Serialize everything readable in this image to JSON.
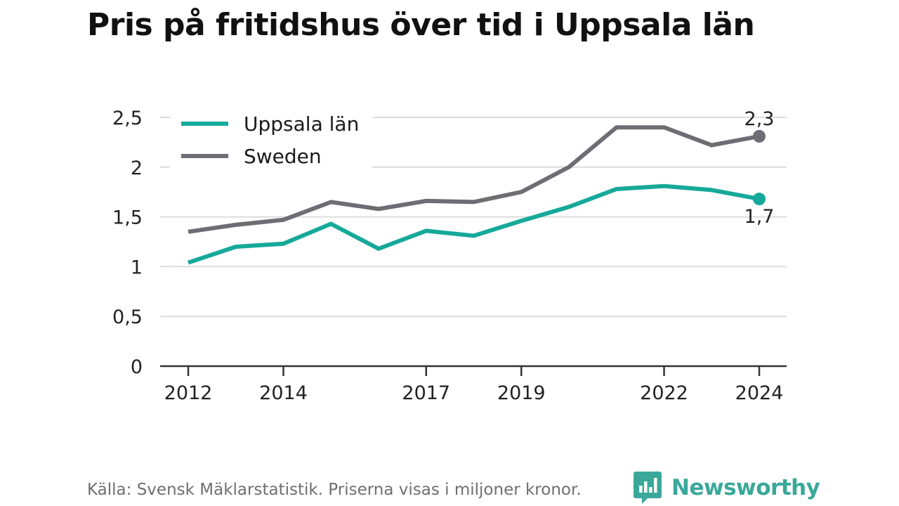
{
  "title": "Pris på fritidshus över tid i Uppsala län",
  "footer": {
    "source": "Källa: Svensk Mäklarstatistik. Priserna visas i miljoner kronor.",
    "brand": "Newsworthy",
    "brand_color": "#3aa89a",
    "brand_icon": "bar-chart-speech-bubble-icon"
  },
  "chart_data": {
    "type": "line",
    "title": "Pris på fritidshus över tid i Uppsala län",
    "xlabel": "",
    "ylabel": "",
    "x": [
      2012,
      2013,
      2014,
      2015,
      2016,
      2017,
      2018,
      2019,
      2020,
      2021,
      2022,
      2023,
      2024
    ],
    "x_ticks": [
      2012,
      2014,
      2017,
      2019,
      2022,
      2024
    ],
    "x_tick_labels": [
      "2012",
      "2014",
      "2017",
      "2019",
      "2022",
      "2024"
    ],
    "y_ticks": [
      0,
      0.5,
      1,
      1.5,
      2,
      2.5
    ],
    "y_tick_labels": [
      "0",
      "0,5",
      "1",
      "1,5",
      "2",
      "2,5"
    ],
    "ylim": [
      0,
      2.5
    ],
    "grid": true,
    "legend_position": "top-left",
    "series": [
      {
        "name": "Uppsala län",
        "color": "#16a99a",
        "values": [
          1.04,
          1.2,
          1.23,
          1.43,
          1.18,
          1.36,
          1.31,
          1.46,
          1.6,
          1.78,
          1.81,
          1.77,
          1.68
        ],
        "end_label": "1,7",
        "end_label_side": "below"
      },
      {
        "name": "Sweden",
        "color": "#6e6d73",
        "values": [
          1.35,
          1.42,
          1.47,
          1.65,
          1.58,
          1.66,
          1.65,
          1.75,
          2.0,
          2.4,
          2.4,
          2.22,
          2.31
        ],
        "end_label": "2,3",
        "end_label_side": "above"
      }
    ]
  }
}
